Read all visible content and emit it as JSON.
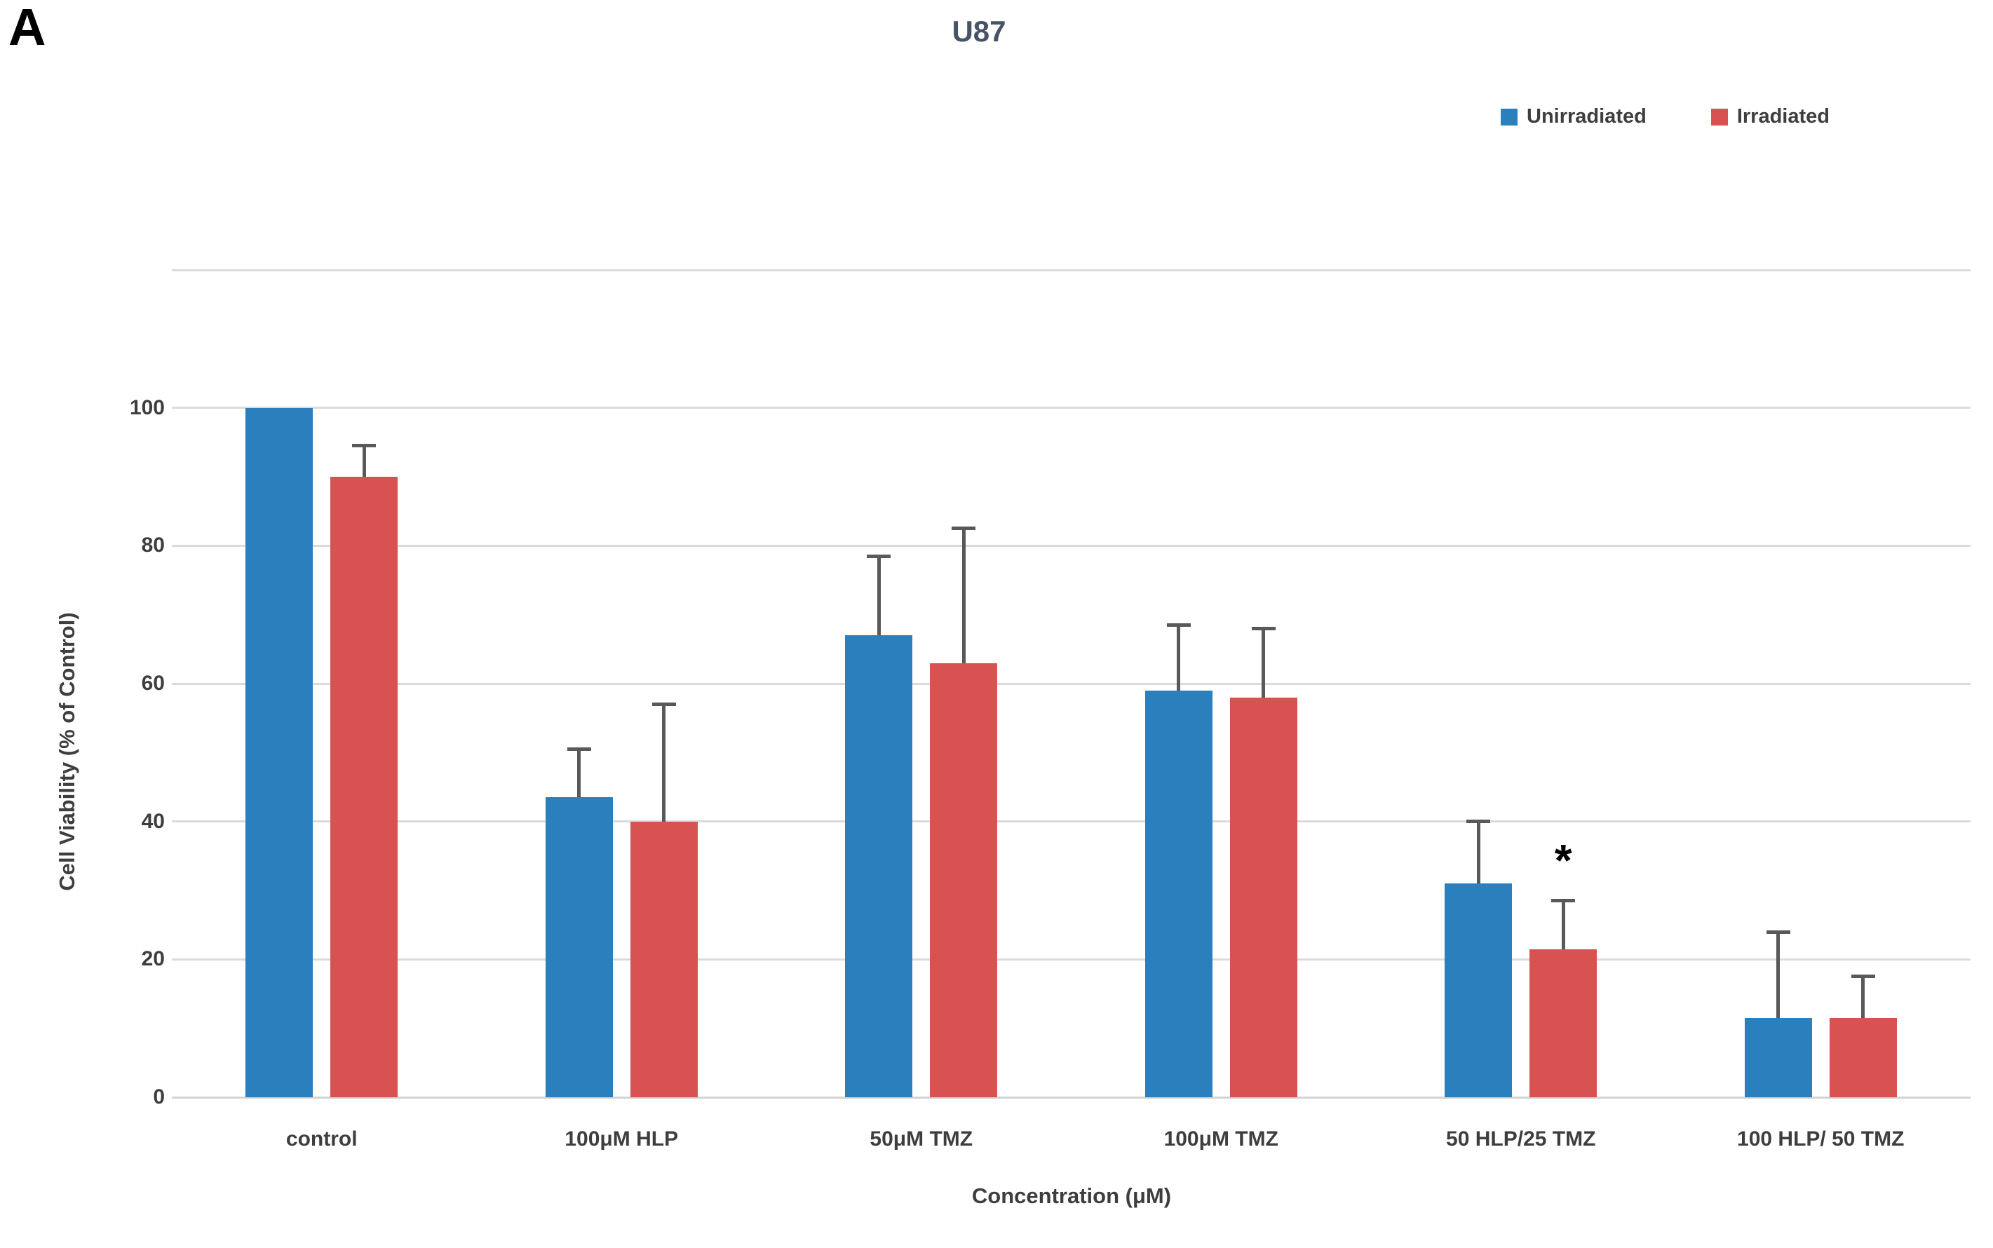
{
  "panel_label": "A",
  "chart_data": {
    "type": "bar",
    "title": "U87",
    "xlabel": "Concentration (μM)",
    "ylabel": "Cell Viability (% of Control)",
    "categories": [
      "control",
      "100μM HLP",
      "50μM TMZ",
      "100μM TMZ",
      "50 HLP/25 TMZ",
      "100 HLP/ 50 TMZ"
    ],
    "series": [
      {
        "name": "Unirradiated",
        "color": "#2B7FBC",
        "values": [
          100,
          43.5,
          67,
          59,
          31,
          11.5
        ],
        "error_plus": [
          0,
          7,
          11.5,
          9.5,
          9,
          12.5
        ]
      },
      {
        "name": "Irradiated",
        "color": "#D95252",
        "values": [
          90,
          40,
          63,
          58,
          21.5,
          11.5
        ],
        "error_plus": [
          4.5,
          17,
          19.5,
          10,
          7,
          6
        ]
      }
    ],
    "yticks": [
      0,
      20,
      40,
      60,
      80,
      100
    ],
    "gridline_values": [
      0,
      20,
      40,
      60,
      80,
      100,
      120
    ],
    "ylim": [
      0,
      120
    ],
    "grid": true,
    "legend_position": "top-right",
    "annotations": [
      {
        "symbol": "*",
        "category_index": 4,
        "series_index": 1
      }
    ]
  },
  "colors": {
    "unirradiated": "#2B7FBC",
    "irradiated": "#D95252",
    "gridline": "#DBDBDB",
    "baseline": "#D3D3D3",
    "error_bar": "#595959",
    "text": "#3E3E3E",
    "title": "#475466"
  }
}
